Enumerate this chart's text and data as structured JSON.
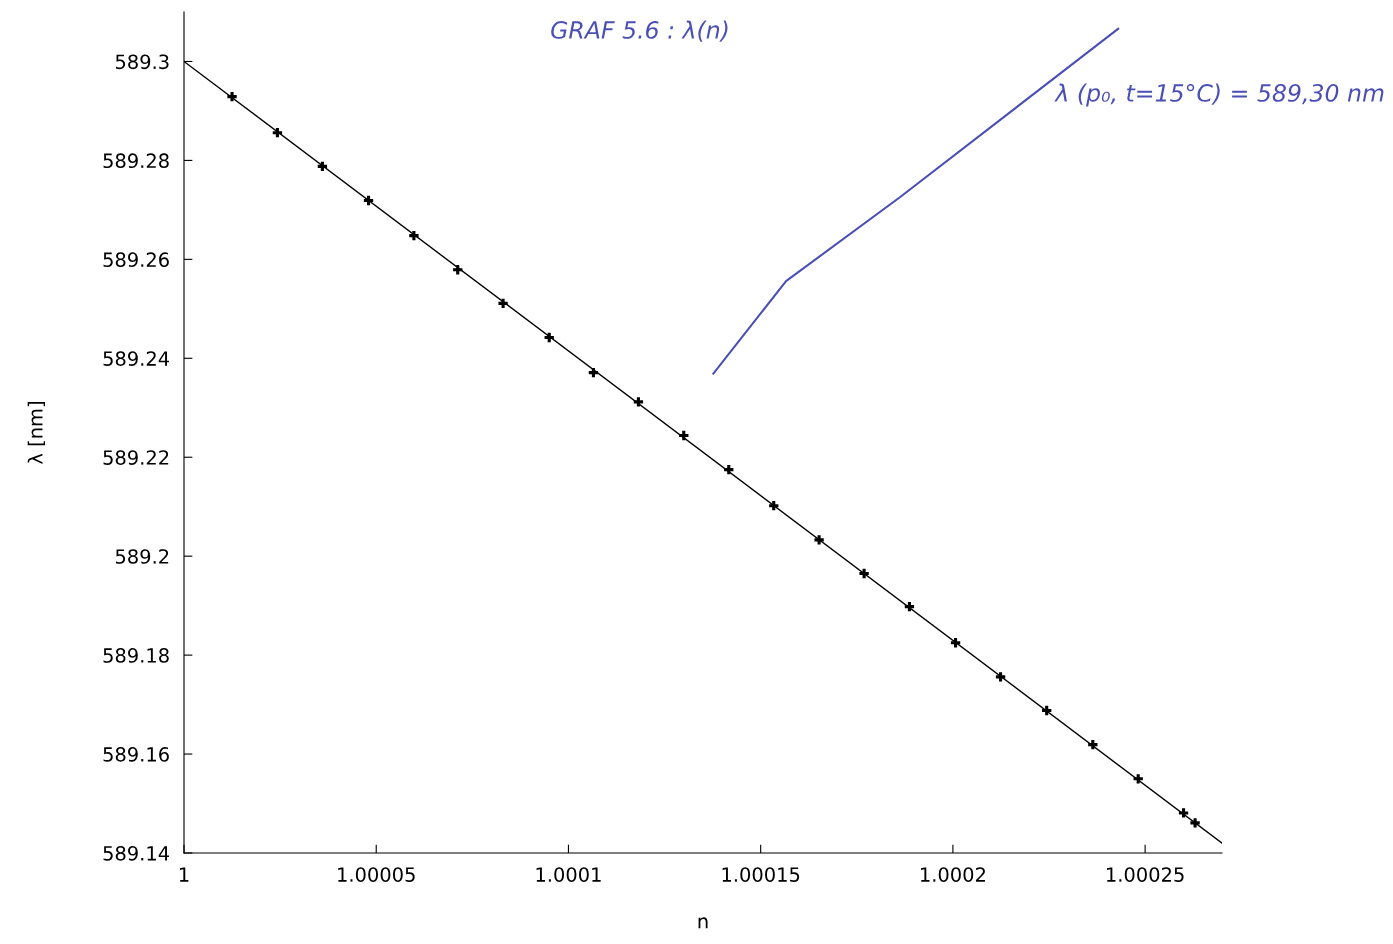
{
  "chart_data": {
    "type": "line",
    "xlabel": "n",
    "ylabel": "λ [nm]",
    "annotations": [
      "GRAF 5.6 : λ(n)",
      "λ (p₀, t=15°C) = 589,30 nm"
    ],
    "xlim": [
      1,
      1.00027
    ],
    "ylim": [
      589.14,
      589.31
    ],
    "xticks": [
      1,
      1.00005,
      1.0001,
      1.00015,
      1.0002,
      1.00025
    ],
    "yticks": [
      589.14,
      589.16,
      589.18,
      589.2,
      589.22,
      589.24,
      589.26,
      589.28,
      589.3
    ],
    "grid": false,
    "legend": false,
    "series": [
      {
        "color": "#000000",
        "marker": "none",
        "line_style": "solid",
        "x": [
          1,
          1.00027
        ],
        "values": [
          589.3,
          589.142
        ]
      },
      {
        "type": "scatter",
        "color": "#000000",
        "marker": "cross",
        "x": [
          1.0000125,
          1.0000243,
          1.000036,
          1.000048,
          1.0000598,
          1.0000712,
          1.000083,
          1.000095,
          1.0001065,
          1.0001182,
          1.00013,
          1.0001417,
          1.0001534,
          1.0001652,
          1.0001769,
          1.0001887,
          1.0002007,
          1.0002124,
          1.0002244,
          1.0002364,
          1.0002482,
          1.00026,
          1.000263
        ],
        "values": [
          589.2929,
          589.2856,
          589.2788,
          589.2719,
          589.2648,
          589.2579,
          589.2511,
          589.2442,
          589.2371,
          589.2312,
          589.2244,
          589.2175,
          589.2102,
          589.2033,
          589.1965,
          589.1898,
          589.1825,
          589.1756,
          589.1688,
          589.1619,
          589.155,
          589.1481,
          589.1461
        ]
      }
    ]
  }
}
